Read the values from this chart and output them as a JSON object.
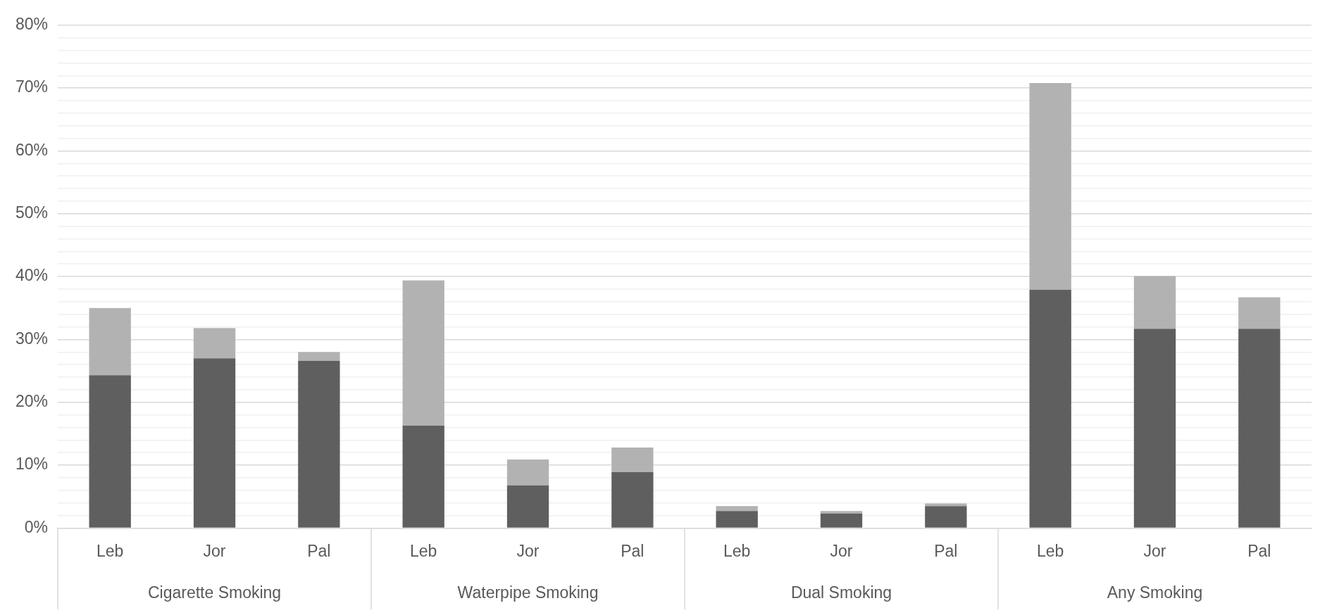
{
  "chart_data": {
    "type": "bar",
    "stacked": true,
    "legend": false,
    "grid": "y",
    "categories": [
      "Leb",
      "Jor",
      "Pal",
      "Leb",
      "Jor",
      "Pal",
      "Leb",
      "Jor",
      "Pal",
      "Leb",
      "Jor",
      "Pal"
    ],
    "annotations": [
      "Cigarette Smoking",
      "Waterpipe Smoking",
      "Dual Smoking",
      "Any Smoking"
    ],
    "series": [
      {
        "color": "#5f5f5f",
        "values": [
          24.3,
          27.0,
          26.6,
          16.3,
          6.8,
          8.9,
          2.7,
          2.3,
          3.5,
          37.9,
          31.7,
          31.7
        ]
      },
      {
        "color": "#b2b2b2",
        "values": [
          10.7,
          4.8,
          1.4,
          23.1,
          4.1,
          3.9,
          0.8,
          0.4,
          0.4,
          32.9,
          8.4,
          5.0
        ]
      }
    ],
    "ylim": [
      0,
      80
    ],
    "yticks": [
      {
        "value": 0,
        "label": "0%"
      },
      {
        "value": 2,
        "label": null
      },
      {
        "value": 4,
        "label": null
      },
      {
        "value": 6,
        "label": null
      },
      {
        "value": 8,
        "label": null
      },
      {
        "value": 10,
        "label": "10%"
      },
      {
        "value": 12,
        "label": null
      },
      {
        "value": 14,
        "label": null
      },
      {
        "value": 16,
        "label": null
      },
      {
        "value": 18,
        "label": null
      },
      {
        "value": 20,
        "label": "20%"
      },
      {
        "value": 22,
        "label": null
      },
      {
        "value": 24,
        "label": null
      },
      {
        "value": 26,
        "label": null
      },
      {
        "value": 28,
        "label": null
      },
      {
        "value": 30,
        "label": "30%"
      },
      {
        "value": 32,
        "label": null
      },
      {
        "value": 34,
        "label": null
      },
      {
        "value": 36,
        "label": null
      },
      {
        "value": 38,
        "label": null
      },
      {
        "value": 40,
        "label": "40%"
      },
      {
        "value": 42,
        "label": null
      },
      {
        "value": 44,
        "label": null
      },
      {
        "value": 46,
        "label": null
      },
      {
        "value": 48,
        "label": null
      },
      {
        "value": 50,
        "label": "50%"
      },
      {
        "value": 52,
        "label": null
      },
      {
        "value": 54,
        "label": null
      },
      {
        "value": 56,
        "label": null
      },
      {
        "value": 58,
        "label": null
      },
      {
        "value": 60,
        "label": "60%"
      },
      {
        "value": 62,
        "label": null
      },
      {
        "value": 64,
        "label": null
      },
      {
        "value": 66,
        "label": null
      },
      {
        "value": 68,
        "label": null
      },
      {
        "value": 70,
        "label": "70%"
      },
      {
        "value": 72,
        "label": null
      },
      {
        "value": 74,
        "label": null
      },
      {
        "value": 76,
        "label": null
      },
      {
        "value": 78,
        "label": null
      },
      {
        "value": 80,
        "label": "80%"
      }
    ]
  }
}
